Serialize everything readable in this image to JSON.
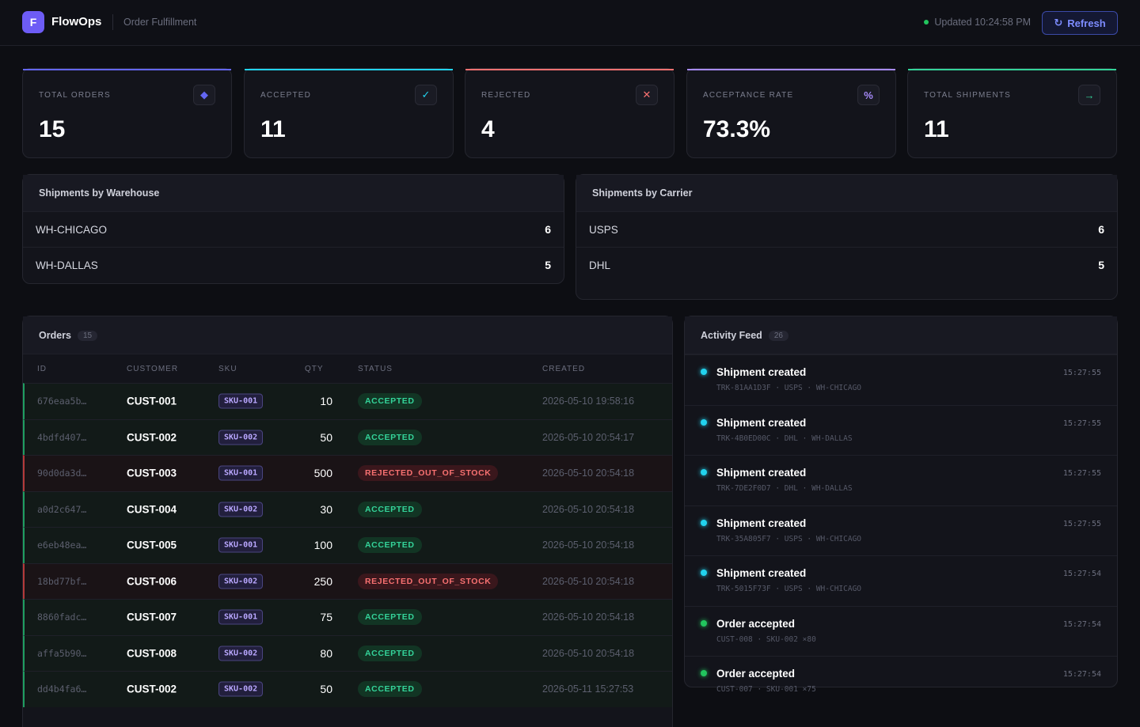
{
  "header": {
    "logo_letter": "F",
    "app_name": "FlowOps",
    "section": "Order Fulfillment",
    "updated": "Updated 10:24:58 PM",
    "refresh_label": "Refresh"
  },
  "kpis": [
    {
      "label": "TOTAL ORDERS",
      "value": "15",
      "icon": "diamond-icon",
      "glyph": "◆",
      "accent": "#6366f1"
    },
    {
      "label": "ACCEPTED",
      "value": "11",
      "icon": "check-icon",
      "glyph": "✓",
      "accent": "#22d3ee"
    },
    {
      "label": "REJECTED",
      "value": "4",
      "icon": "close-icon",
      "glyph": "✕",
      "accent": "#f87171"
    },
    {
      "label": "ACCEPTANCE RATE",
      "value": "73.3%",
      "icon": "percent-icon",
      "glyph": "%",
      "accent": "#a78bfa"
    },
    {
      "label": "TOTAL SHIPMENTS",
      "value": "11",
      "icon": "arrow-right-icon",
      "glyph": "→",
      "accent": "#34d399"
    }
  ],
  "warehouse": {
    "title": "Shipments by Warehouse",
    "rows": [
      {
        "name": "WH-CHICAGO",
        "count": "6"
      },
      {
        "name": "WH-DALLAS",
        "count": "5"
      }
    ]
  },
  "carrier": {
    "title": "Shipments by Carrier",
    "rows": [
      {
        "name": "USPS",
        "count": "6"
      },
      {
        "name": "DHL",
        "count": "5"
      }
    ]
  },
  "orders": {
    "title": "Orders",
    "count": "15",
    "columns": {
      "id": "ID",
      "customer": "CUSTOMER",
      "sku": "SKU",
      "qty": "QTY",
      "status": "STATUS",
      "created": "CREATED"
    },
    "rows": [
      {
        "id": "676eaa5b…",
        "customer": "CUST-001",
        "sku": "SKU-001",
        "qty": "10",
        "status": "ACCEPTED",
        "created": "2026-05-10 19:58:16"
      },
      {
        "id": "4bdfd407…",
        "customer": "CUST-002",
        "sku": "SKU-002",
        "qty": "50",
        "status": "ACCEPTED",
        "created": "2026-05-10 20:54:17"
      },
      {
        "id": "90d0da3d…",
        "customer": "CUST-003",
        "sku": "SKU-001",
        "qty": "500",
        "status": "REJECTED_OUT_OF_STOCK",
        "created": "2026-05-10 20:54:18"
      },
      {
        "id": "a0d2c647…",
        "customer": "CUST-004",
        "sku": "SKU-002",
        "qty": "30",
        "status": "ACCEPTED",
        "created": "2026-05-10 20:54:18"
      },
      {
        "id": "e6eb48ea…",
        "customer": "CUST-005",
        "sku": "SKU-001",
        "qty": "100",
        "status": "ACCEPTED",
        "created": "2026-05-10 20:54:18"
      },
      {
        "id": "18bd77bf…",
        "customer": "CUST-006",
        "sku": "SKU-002",
        "qty": "250",
        "status": "REJECTED_OUT_OF_STOCK",
        "created": "2026-05-10 20:54:18"
      },
      {
        "id": "8860fadc…",
        "customer": "CUST-007",
        "sku": "SKU-001",
        "qty": "75",
        "status": "ACCEPTED",
        "created": "2026-05-10 20:54:18"
      },
      {
        "id": "affa5b90…",
        "customer": "CUST-008",
        "sku": "SKU-002",
        "qty": "80",
        "status": "ACCEPTED",
        "created": "2026-05-10 20:54:18"
      },
      {
        "id": "dd4b4fa6…",
        "customer": "CUST-002",
        "sku": "SKU-002",
        "qty": "50",
        "status": "ACCEPTED",
        "created": "2026-05-11 15:27:53"
      }
    ]
  },
  "activity": {
    "title": "Activity Feed",
    "count": "26",
    "items": [
      {
        "title": "Shipment created",
        "sub": "TRK-81AA1D3F · USPS · WH-CHICAGO",
        "time": "15:27:55",
        "color": "#22d3ee"
      },
      {
        "title": "Shipment created",
        "sub": "TRK-4B0ED00C · DHL · WH-DALLAS",
        "time": "15:27:55",
        "color": "#22d3ee"
      },
      {
        "title": "Shipment created",
        "sub": "TRK-7DE2F0D7 · DHL · WH-DALLAS",
        "time": "15:27:55",
        "color": "#22d3ee"
      },
      {
        "title": "Shipment created",
        "sub": "TRK-35A805F7 · USPS · WH-CHICAGO",
        "time": "15:27:55",
        "color": "#22d3ee"
      },
      {
        "title": "Shipment created",
        "sub": "TRK-5015F73F · USPS · WH-CHICAGO",
        "time": "15:27:54",
        "color": "#22d3ee"
      },
      {
        "title": "Order accepted",
        "sub": "CUST-008 · SKU-002 ×80",
        "time": "15:27:54",
        "color": "#22c55e"
      },
      {
        "title": "Order accepted",
        "sub": "CUST-007 · SKU-001 ×75",
        "time": "15:27:54",
        "color": "#22c55e"
      }
    ]
  }
}
